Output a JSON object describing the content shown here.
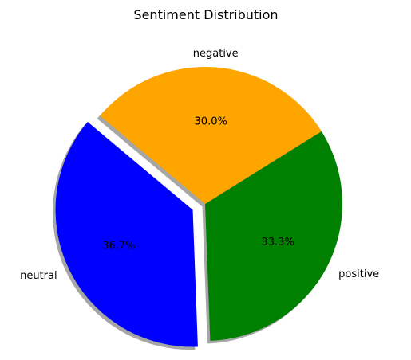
{
  "chart_data": {
    "type": "pie",
    "title": "Sentiment Distribution",
    "slices": [
      {
        "label": "neutral",
        "value": 36.7,
        "pct_label": "36.7%",
        "color": "#0000ff",
        "exploded": true
      },
      {
        "label": "positive",
        "value": 33.3,
        "pct_label": "33.3%",
        "color": "#008000",
        "exploded": false
      },
      {
        "label": "negative",
        "value": 30.0,
        "pct_label": "30.0%",
        "color": "#ffa500",
        "exploded": false
      }
    ],
    "start_angle_deg": 140,
    "shadow": true,
    "legend": "none"
  }
}
